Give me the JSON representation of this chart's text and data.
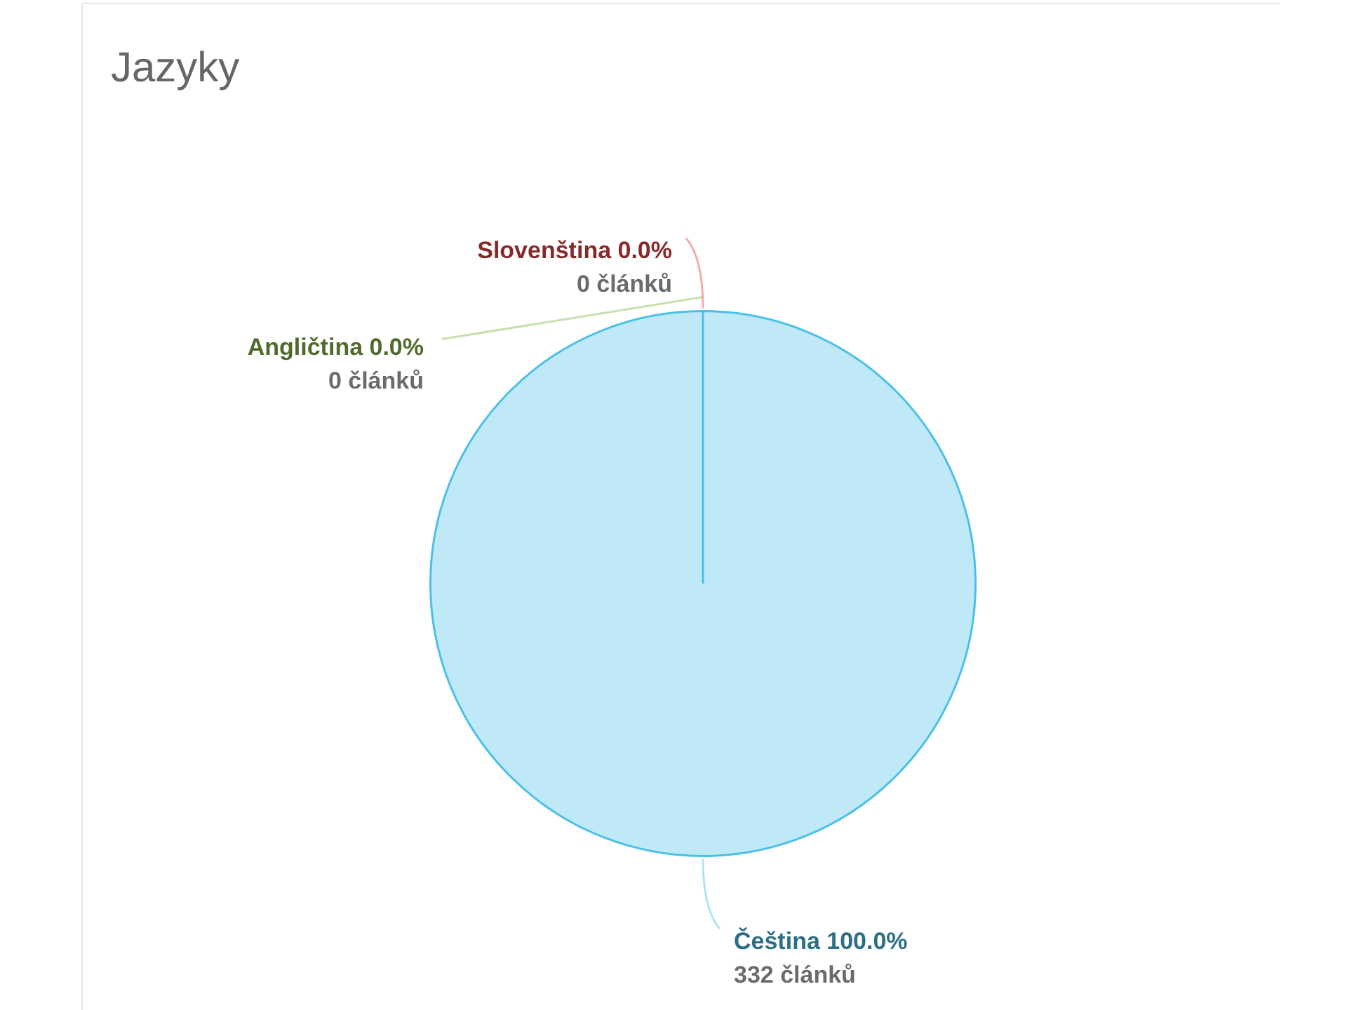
{
  "chart_data": {
    "type": "pie",
    "title": "Jazyky",
    "categories": [
      "Čeština",
      "Slovenština",
      "Angličtina"
    ],
    "values": [
      332,
      0,
      0
    ],
    "colors": [
      "#4bc0e8",
      "#e84848",
      "#8ab84a"
    ],
    "value_labels": [
      "100.0%\n332 článků",
      "0.0%\n0 článků",
      "0.0%\n0 článků"
    ]
  }
}
